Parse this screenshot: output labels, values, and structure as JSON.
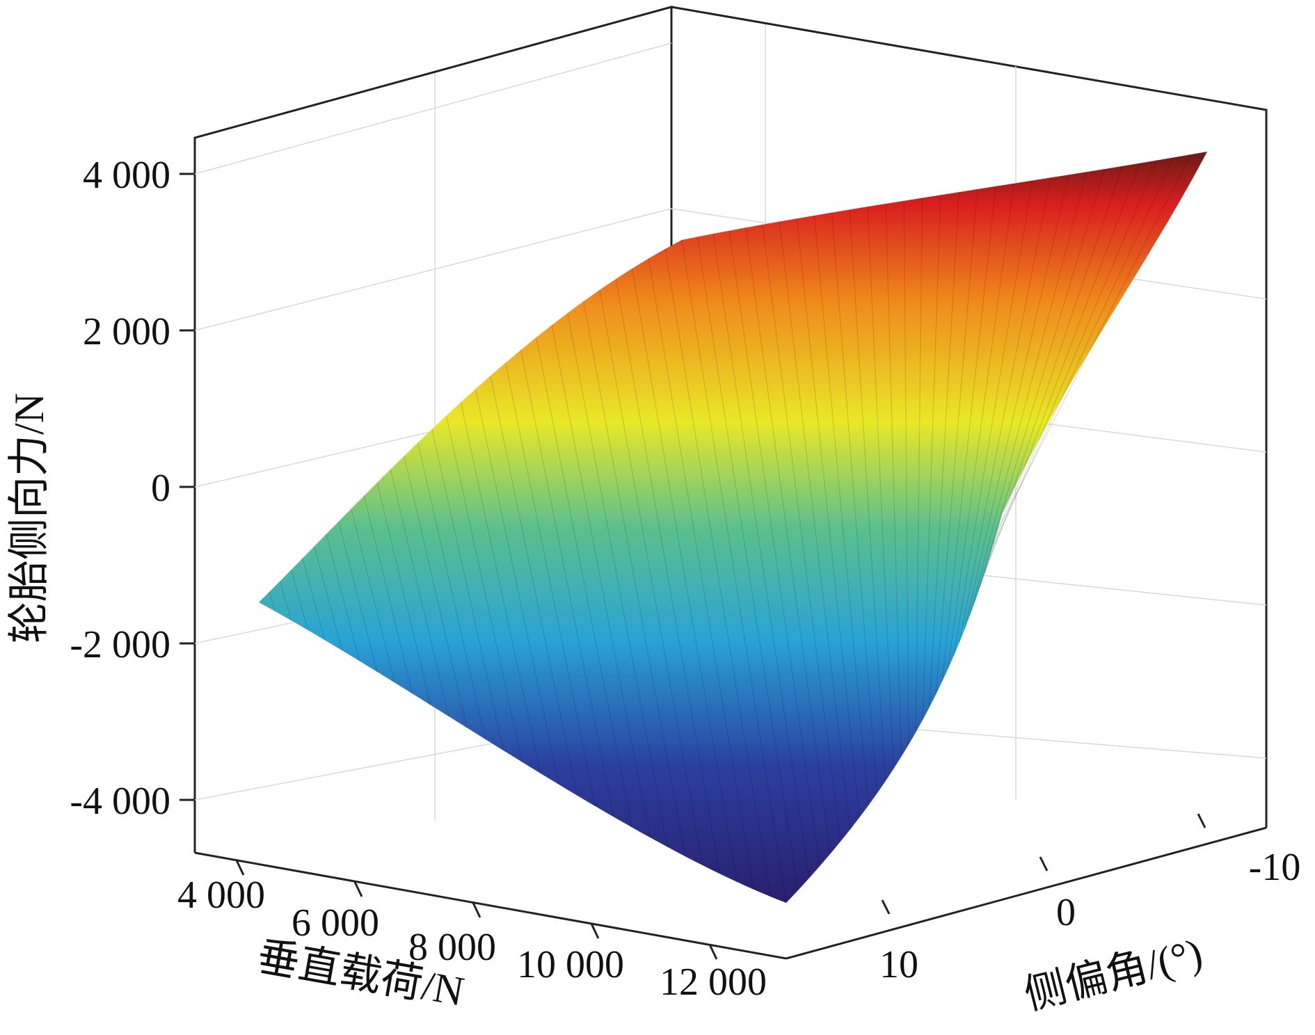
{
  "chart_data": {
    "type": "surface",
    "title": "",
    "zlabel": "轮胎侧向力/N",
    "xlabel": "垂直载荷/N",
    "ylabel": "侧偏角/(°)",
    "z_ticks": [
      "4 000",
      "2 000",
      "0",
      "-2 000",
      "-4 000"
    ],
    "z_tick_values": [
      4000,
      2000,
      0,
      -2000,
      -4000
    ],
    "x_ticks": [
      "4 000",
      "6 000",
      "8 000",
      "10 000",
      "12 000"
    ],
    "x_tick_values": [
      4000,
      6000,
      8000,
      10000,
      12000
    ],
    "y_ticks": [
      "-10",
      "0",
      "10"
    ],
    "y_tick_values": [
      -10,
      0,
      10
    ],
    "xlim": [
      4000,
      12000
    ],
    "ylim": [
      -12,
      12
    ],
    "zlim": [
      -4000,
      4000
    ],
    "grid": true,
    "colormap": "jet",
    "corner_values": [
      {
        "load": 4000,
        "slip_angle": -12,
        "lateral_force": 1600
      },
      {
        "load": 4000,
        "slip_angle": 12,
        "lateral_force": -1600
      },
      {
        "load": 12000,
        "slip_angle": -12,
        "lateral_force": 4100
      },
      {
        "load": 12000,
        "slip_angle": 12,
        "lateral_force": -4100
      }
    ]
  }
}
